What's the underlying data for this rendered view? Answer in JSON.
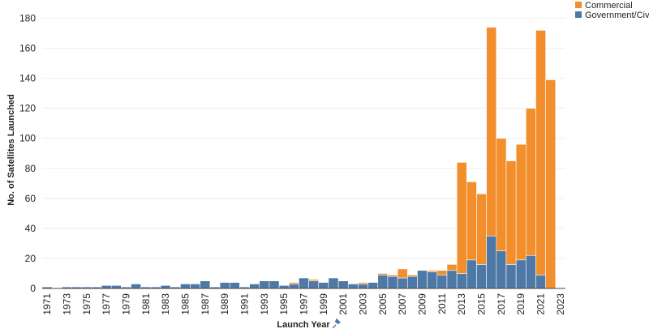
{
  "chart_data": {
    "type": "bar",
    "stacked": true,
    "xlabel": "Launch Year",
    "xlabel_icon": "pin-icon",
    "ylabel": "No. of Satellites Launched",
    "ylim": [
      0,
      190
    ],
    "yticks": [
      0,
      20,
      40,
      60,
      80,
      100,
      120,
      140,
      160,
      180
    ],
    "grid": true,
    "legend_position": "top-right",
    "categories": [
      "1971",
      "1972",
      "1973",
      "1974",
      "1975",
      "1976",
      "1977",
      "1978",
      "1979",
      "1980",
      "1981",
      "1982",
      "1983",
      "1984",
      "1985",
      "1986",
      "1987",
      "1988",
      "1989",
      "1990",
      "1991",
      "1992",
      "1993",
      "1994",
      "1995",
      "1996",
      "1997",
      "1998",
      "1999",
      "2000",
      "2001",
      "2002",
      "2003",
      "2004",
      "2005",
      "2006",
      "2007",
      "2008",
      "2009",
      "2010",
      "2011",
      "2012",
      "2013",
      "2014",
      "2015",
      "2016",
      "2017",
      "2018",
      "2019",
      "2020",
      "2021",
      "2022",
      "2023"
    ],
    "tick_labels": [
      "1971",
      "1973",
      "1975",
      "1977",
      "1979",
      "1981",
      "1983",
      "1985",
      "1987",
      "1989",
      "1991",
      "1993",
      "1995",
      "1997",
      "1999",
      "2001",
      "2003",
      "2005",
      "2007",
      "2009",
      "2011",
      "2013",
      "2015",
      "2017",
      "2019",
      "2021",
      "2023"
    ],
    "series": [
      {
        "name": "Government/Civil",
        "color": "#4e79a7",
        "values": [
          1,
          0,
          1,
          1,
          1,
          1,
          2,
          2,
          1,
          3,
          1,
          1,
          2,
          1,
          3,
          3,
          5,
          1,
          4,
          4,
          1,
          3,
          5,
          5,
          2,
          3,
          7,
          5,
          4,
          7,
          5,
          3,
          3,
          4,
          9,
          8,
          7,
          8,
          12,
          11,
          9,
          12,
          10,
          19,
          16,
          35,
          25,
          16,
          19,
          22,
          9,
          0,
          0
        ]
      },
      {
        "name": "Commercial",
        "color": "#f28e2b",
        "values": [
          0,
          0,
          0,
          0,
          0,
          0,
          0,
          0,
          0,
          0,
          0,
          0,
          0,
          0,
          0,
          0,
          0,
          0,
          0,
          0,
          0,
          0,
          0,
          0,
          0,
          1,
          0,
          1,
          0,
          0,
          0,
          0,
          1,
          0,
          1,
          1,
          6,
          1,
          0,
          1,
          3,
          4,
          74,
          52,
          47,
          139,
          75,
          69,
          77,
          98,
          163,
          139,
          0
        ]
      }
    ]
  },
  "legend": {
    "items": [
      {
        "label": "Commercial",
        "color": "#f28e2b"
      },
      {
        "label": "Government/Civil",
        "color": "#4e79a7"
      }
    ]
  },
  "colors": {
    "grid": "#eeeeee",
    "axis": "#444444"
  }
}
